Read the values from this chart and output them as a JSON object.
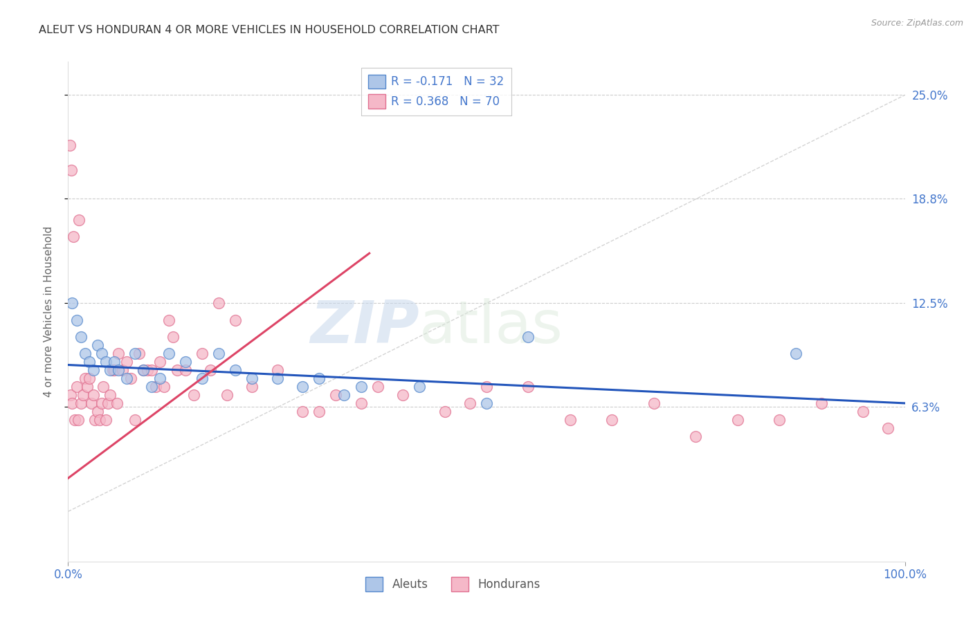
{
  "title": "ALEUT VS HONDURAN 4 OR MORE VEHICLES IN HOUSEHOLD CORRELATION CHART",
  "source": "Source: ZipAtlas.com",
  "ylabel": "4 or more Vehicles in Household",
  "xlim": [
    0,
    100
  ],
  "ylim": [
    -3,
    27
  ],
  "ytick_positions": [
    6.3,
    12.5,
    18.8,
    25.0
  ],
  "aleut_color": "#aec6e8",
  "honduran_color": "#f5b8c8",
  "aleut_edge_color": "#5588cc",
  "honduran_edge_color": "#e07090",
  "aleut_line_color": "#2255bb",
  "honduran_line_color": "#dd4466",
  "ref_line_color": "#cccccc",
  "background_color": "#ffffff",
  "grid_color": "#cccccc",
  "watermark_zip": "ZIP",
  "watermark_atlas": "atlas",
  "title_color": "#333333",
  "ytick_color": "#4477cc",
  "xtick_color": "#4477cc",
  "source_color": "#999999",
  "aleut_x": [
    0.5,
    1.0,
    1.5,
    2.0,
    2.5,
    3.0,
    3.5,
    4.0,
    4.5,
    5.0,
    5.5,
    6.0,
    7.0,
    8.0,
    9.0,
    10.0,
    11.0,
    12.0,
    14.0,
    16.0,
    18.0,
    20.0,
    22.0,
    25.0,
    28.0,
    30.0,
    33.0,
    35.0,
    42.0,
    50.0,
    55.0,
    87.0
  ],
  "aleut_y": [
    12.5,
    11.5,
    10.5,
    9.5,
    9.0,
    8.5,
    10.0,
    9.5,
    9.0,
    8.5,
    9.0,
    8.5,
    8.0,
    9.5,
    8.5,
    7.5,
    8.0,
    9.5,
    9.0,
    8.0,
    9.5,
    8.5,
    8.0,
    8.0,
    7.5,
    8.0,
    7.0,
    7.5,
    7.5,
    6.5,
    10.5,
    9.5
  ],
  "honduran_x": [
    0.3,
    0.5,
    0.8,
    1.0,
    1.2,
    1.5,
    1.8,
    2.0,
    2.3,
    2.5,
    2.8,
    3.0,
    3.2,
    3.5,
    3.8,
    4.0,
    4.2,
    4.5,
    4.8,
    5.0,
    5.3,
    5.5,
    5.8,
    6.0,
    6.5,
    7.0,
    7.5,
    8.0,
    8.5,
    9.0,
    9.5,
    10.0,
    10.5,
    11.0,
    11.5,
    12.0,
    12.5,
    13.0,
    14.0,
    15.0,
    16.0,
    17.0,
    18.0,
    19.0,
    20.0,
    22.0,
    25.0,
    28.0,
    30.0,
    32.0,
    35.0,
    37.0,
    40.0,
    45.0,
    48.0,
    50.0,
    55.0,
    60.0,
    65.0,
    70.0,
    75.0,
    80.0,
    85.0,
    90.0,
    95.0,
    98.0,
    0.2,
    0.4,
    0.6,
    1.3
  ],
  "honduran_y": [
    7.0,
    6.5,
    5.5,
    7.5,
    5.5,
    6.5,
    7.0,
    8.0,
    7.5,
    8.0,
    6.5,
    7.0,
    5.5,
    6.0,
    5.5,
    6.5,
    7.5,
    5.5,
    6.5,
    7.0,
    8.5,
    8.5,
    6.5,
    9.5,
    8.5,
    9.0,
    8.0,
    5.5,
    9.5,
    8.5,
    8.5,
    8.5,
    7.5,
    9.0,
    7.5,
    11.5,
    10.5,
    8.5,
    8.5,
    7.0,
    9.5,
    8.5,
    12.5,
    7.0,
    11.5,
    7.5,
    8.5,
    6.0,
    6.0,
    7.0,
    6.5,
    7.5,
    7.0,
    6.0,
    6.5,
    7.5,
    7.5,
    5.5,
    5.5,
    6.5,
    4.5,
    5.5,
    5.5,
    6.5,
    6.0,
    5.0,
    22.0,
    20.5,
    16.5,
    17.5
  ],
  "aleut_line_x": [
    0,
    100
  ],
  "aleut_line_y": [
    8.8,
    6.5
  ],
  "honduran_line_x": [
    0,
    36
  ],
  "honduran_line_y": [
    2.0,
    15.5
  ]
}
